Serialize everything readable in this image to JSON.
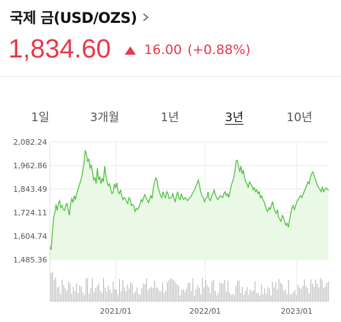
{
  "header": {
    "title": "국제 금(USD/OZS)",
    "chevron_icon": "chevron-right-icon"
  },
  "quote": {
    "price": "1,834.60",
    "direction": "up",
    "change": "16.00",
    "change_pct": "(+0.88%)",
    "color_up": "#e8384a"
  },
  "tabs": [
    {
      "label": "1일",
      "active": false
    },
    {
      "label": "3개월",
      "active": false
    },
    {
      "label": "1년",
      "active": false
    },
    {
      "label": "3년",
      "active": true
    },
    {
      "label": "10년",
      "active": false
    }
  ],
  "chart_data": {
    "type": "area",
    "y_ticks": [
      "2,082.24",
      "1,962.86",
      "1,843.49",
      "1,724.11",
      "1,604.74",
      "1,485.36"
    ],
    "ylim": [
      1485.36,
      2082.24
    ],
    "x_ticks": [
      "2021/01",
      "2022/01",
      "2023/01"
    ],
    "line_color": "#4cbf3a",
    "fill_color": "#eaf8e6",
    "grid": true,
    "series": [
      {
        "values": [
          1555,
          1535,
          1620,
          1700,
          1720,
          1765,
          1735,
          1770,
          1785,
          1750,
          1760,
          1740,
          1735,
          1760,
          1770,
          1740,
          1710,
          1770,
          1795,
          1775,
          1810,
          1790,
          1820,
          1840,
          1860,
          1880,
          1900,
          1935,
          1975,
          2040,
          2020,
          1985,
          1995,
          1950,
          1965,
          1930,
          1890,
          1900,
          1870,
          1950,
          1890,
          1905,
          1870,
          1900,
          1880,
          1960,
          1915,
          1880,
          1860,
          1870,
          1840,
          1820,
          1830,
          1870,
          1850,
          1875,
          1830,
          1820,
          1840,
          1810,
          1790,
          1800,
          1795,
          1780,
          1770,
          1800,
          1790,
          1760,
          1765,
          1760,
          1730,
          1745,
          1740,
          1750,
          1765,
          1790,
          1780,
          1800,
          1815,
          1800,
          1790,
          1775,
          1790,
          1810,
          1795,
          1850,
          1880,
          1900,
          1890,
          1850,
          1830,
          1810,
          1800,
          1830,
          1810,
          1800,
          1830,
          1820,
          1795,
          1800,
          1800,
          1820,
          1795,
          1780,
          1810,
          1830,
          1800,
          1790,
          1820,
          1800,
          1790,
          1800,
          1795,
          1785,
          1790,
          1800,
          1805,
          1820,
          1830,
          1840,
          1860,
          1870,
          1890,
          1860,
          1830,
          1810,
          1800,
          1780,
          1795,
          1800,
          1830,
          1790,
          1785,
          1810,
          1820,
          1840,
          1815,
          1800,
          1790,
          1800,
          1810,
          1805,
          1800,
          1820,
          1830,
          1810,
          1820,
          1800,
          1830,
          1860,
          1880,
          1900,
          1930,
          1985,
          1990,
          1960,
          1930,
          1960,
          1920,
          1940,
          1900,
          1880,
          1870,
          1850,
          1880,
          1870,
          1860,
          1840,
          1850,
          1830,
          1840,
          1820,
          1830,
          1800,
          1810,
          1790,
          1780,
          1760,
          1740,
          1730,
          1750,
          1740,
          1760,
          1780,
          1750,
          1730,
          1720,
          1740,
          1700,
          1690,
          1680,
          1710,
          1700,
          1680,
          1660,
          1670,
          1650,
          1690,
          1720,
          1750,
          1760,
          1740,
          1760,
          1780,
          1790,
          1800,
          1810,
          1800,
          1815,
          1830,
          1845,
          1860,
          1880,
          1870,
          1900,
          1920,
          1930,
          1915,
          1895,
          1880,
          1860,
          1850,
          1840,
          1830,
          1855,
          1830,
          1840,
          1850,
          1845,
          1835
        ]
      }
    ]
  }
}
